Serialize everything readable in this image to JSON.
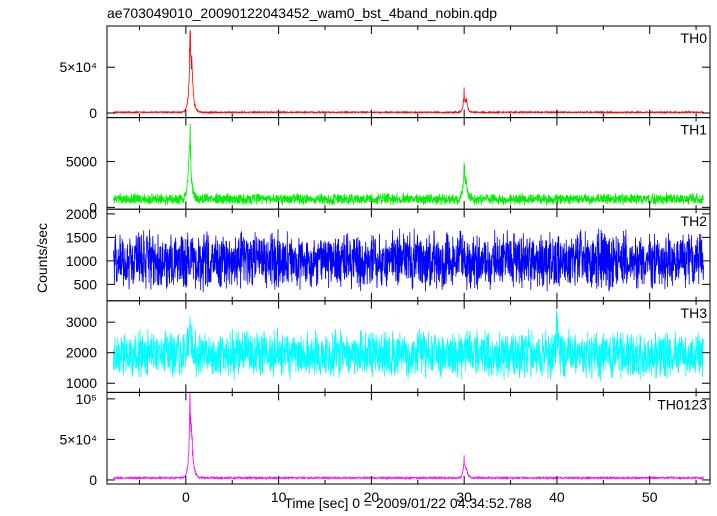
{
  "chart_data": {
    "type": "line",
    "title": "ae703049010_20090122043452_wam0_bst_4band_nobin.qdp",
    "xlabel": "Time [sec] 0 = 2009/01/22 04:34:52.788",
    "ylabel": "Counts/sec",
    "xlim": [
      -8.5,
      56.5
    ],
    "xticks": [
      "0",
      "10",
      "20",
      "30",
      "40",
      "50"
    ],
    "xtick_values": [
      0,
      10,
      20,
      30,
      40,
      50
    ],
    "panels": [
      {
        "name": "TH0",
        "color": "#ff0000",
        "ylim": [
          -5000,
          95000
        ],
        "yticks": [
          "0",
          "5×10⁴"
        ],
        "ytick_values": [
          0,
          50000
        ],
        "baseline": 800,
        "noise": 900,
        "events": [
          {
            "t": 0.45,
            "peak": 93000,
            "width": 0.12
          },
          {
            "t": 0.62,
            "peak": 55000,
            "width": 0.2
          },
          {
            "t": 30.0,
            "peak": 28000,
            "width": 0.12
          },
          {
            "t": 30.25,
            "peak": 15000,
            "width": 0.15
          }
        ]
      },
      {
        "name": "TH1",
        "color": "#00ee00",
        "ylim": [
          -200,
          9800
        ],
        "yticks": [
          "0",
          "5000"
        ],
        "ytick_values": [
          0,
          5000
        ],
        "baseline": 900,
        "noise": 700,
        "events": [
          {
            "t": 0.45,
            "peak": 9500,
            "width": 0.12
          },
          {
            "t": 0.3,
            "peak": 3700,
            "width": 0.25
          },
          {
            "t": 30.0,
            "peak": 5500,
            "width": 0.12
          },
          {
            "t": 30.2,
            "peak": 2800,
            "width": 0.2
          }
        ]
      },
      {
        "name": "TH2",
        "color": "#0000ff",
        "ylim": [
          150,
          2100
        ],
        "yticks": [
          "500",
          "1000",
          "1500",
          "2000"
        ],
        "ytick_values": [
          500,
          1000,
          1500,
          2000
        ],
        "baseline": 1000,
        "noise": 700,
        "events": []
      },
      {
        "name": "TH3",
        "color": "#00ffff",
        "ylim": [
          700,
          3700
        ],
        "yticks": [
          "1000",
          "2000",
          "3000"
        ],
        "ytick_values": [
          1000,
          2000,
          3000
        ],
        "baseline": 1950,
        "noise": 900,
        "events": [
          {
            "t": 0.5,
            "peak": 3650,
            "width": 0.1
          },
          {
            "t": 40.0,
            "peak": 3600,
            "width": 0.1
          }
        ]
      },
      {
        "name": "TH0123",
        "color": "#ff00ff",
        "ylim": [
          -5000,
          108000
        ],
        "yticks": [
          "0",
          "5×10⁴",
          "10⁵"
        ],
        "ytick_values": [
          0,
          50000,
          100000
        ],
        "baseline": 2500,
        "noise": 1300,
        "events": [
          {
            "t": 0.45,
            "peak": 107000,
            "width": 0.12
          },
          {
            "t": 0.62,
            "peak": 60000,
            "width": 0.2
          },
          {
            "t": 30.0,
            "peak": 33000,
            "width": 0.12
          },
          {
            "t": 30.25,
            "peak": 15000,
            "width": 0.15
          }
        ]
      }
    ],
    "data_range": [
      -7.8,
      55.8
    ],
    "grid": false,
    "legend": "none"
  }
}
